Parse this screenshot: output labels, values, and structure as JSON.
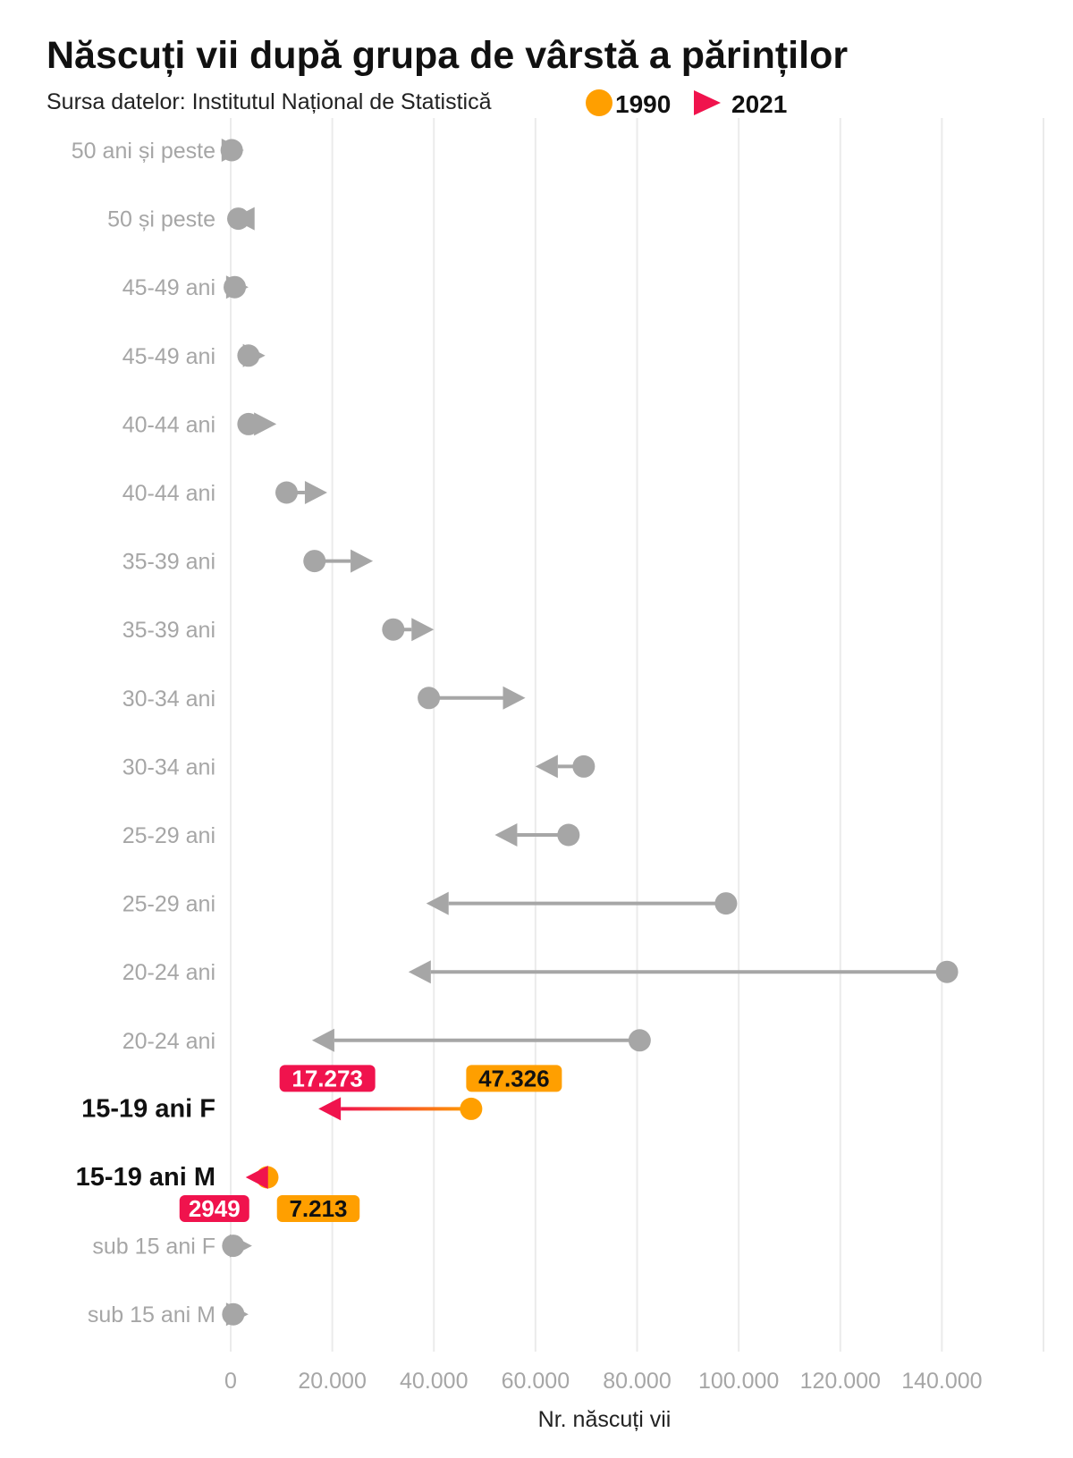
{
  "colors": {
    "start": "#ff9f00",
    "end": "#f0134d",
    "muted": "#a6a6a6",
    "grid": "#ebebeb"
  },
  "chart_data": {
    "type": "dumbbell-arrow",
    "title": "Născuți vii după grupa de vârstă a părinților",
    "subtitle": "Sursa datelor: Institutul Național de Statistică",
    "legend": [
      {
        "label": "1990",
        "shape": "circle",
        "color": "#ff9f00"
      },
      {
        "label": "2021",
        "shape": "triangle",
        "color": "#f0134d"
      }
    ],
    "xlabel": "Nr. născuți vii",
    "xlim": [
      0,
      160000
    ],
    "xticks": [
      0,
      20000,
      40000,
      60000,
      80000,
      100000,
      120000,
      140000
    ],
    "xtick_labels": [
      "0",
      "20.000",
      "40.000",
      "60.000",
      "80.000",
      "100.000",
      "120.000",
      "140.000"
    ],
    "grid": true,
    "rows": [
      {
        "label": "50 ani și peste",
        "v1990": 200,
        "v2021": 2600
      },
      {
        "label": "50 și peste",
        "v1990": 1500,
        "v2021": 300
      },
      {
        "label": "45-49 ani",
        "v1990": 800,
        "v2021": 3500
      },
      {
        "label": "45-49 ani",
        "v1990": 3500,
        "v2021": 6800
      },
      {
        "label": "40-44 ani",
        "v1990": 3500,
        "v2021": 9000
      },
      {
        "label": "40-44 ani",
        "v1990": 11000,
        "v2021": 19000
      },
      {
        "label": "35-39 ani",
        "v1990": 16500,
        "v2021": 28000
      },
      {
        "label": "35-39 ani",
        "v1990": 32000,
        "v2021": 40000
      },
      {
        "label": "30-34 ani",
        "v1990": 39000,
        "v2021": 58000
      },
      {
        "label": "30-34 ani",
        "v1990": 69500,
        "v2021": 60000
      },
      {
        "label": "25-29 ani",
        "v1990": 66500,
        "v2021": 52000
      },
      {
        "label": "25-29 ani",
        "v1990": 97500,
        "v2021": 38500
      },
      {
        "label": "20-24 ani",
        "v1990": 141000,
        "v2021": 35000
      },
      {
        "label": "20-24 ani",
        "v1990": 80500,
        "v2021": 16000
      },
      {
        "label": "15-19 ani F",
        "v1990": 47326,
        "v2021": 17273,
        "highlight": true,
        "label1990": "47.326",
        "label2021": "17.273",
        "badges": "above"
      },
      {
        "label": "15-19 ani M",
        "v1990": 7213,
        "v2021": 2949,
        "highlight": true,
        "label1990": "7.213",
        "label2021": "2949",
        "badges": "below"
      },
      {
        "label": "sub 15 ani F",
        "v1990": 500,
        "v2021": 4200
      },
      {
        "label": "sub 15 ani M",
        "v1990": 500,
        "v2021": 3500
      }
    ]
  }
}
